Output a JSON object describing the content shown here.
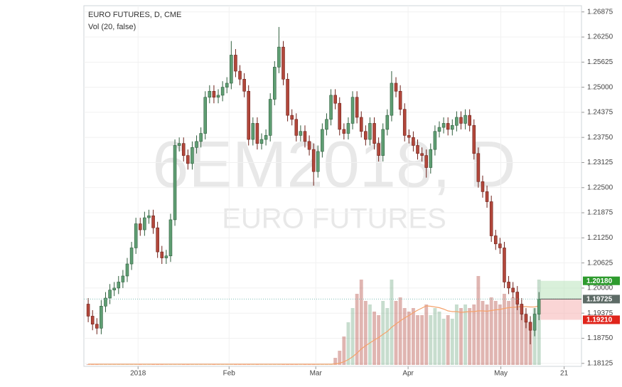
{
  "chart_data": {
    "type": "candlestick",
    "title": "EURO FUTURES, D, CME",
    "subtitle": "Vol (20, false)",
    "watermark": "6EM2018, D",
    "watermark_subtitle": "EURO FUTURES",
    "up_color": "#5f9e73",
    "down_color": "#b2473b",
    "grid": true,
    "xlim": [
      -1,
      113.8
    ],
    "xticks": [
      {
        "value": 11.5,
        "label": "2018"
      },
      {
        "value": 32.5,
        "label": "Feb"
      },
      {
        "value": 52.5,
        "label": "Mar"
      },
      {
        "value": 73.8,
        "label": "Apr"
      },
      {
        "value": 95.2,
        "label": "May"
      },
      {
        "value": 109.8,
        "label": "21"
      }
    ],
    "ylim": [
      1.1805,
      1.2703
    ],
    "yticks": [
      1.26875,
      {
        "value": 1.2625,
        "label": "1.26250"
      },
      1.25625,
      {
        "value": 1.25,
        "label": "1.25000"
      },
      1.24375,
      {
        "value": 1.2375,
        "label": "1.23750"
      },
      1.23125,
      {
        "value": 1.225,
        "label": "1.22500"
      },
      1.21875,
      {
        "value": 1.2125,
        "label": "1.21250"
      },
      1.20625,
      {
        "value": 1.2,
        "label": "1.20000"
      },
      1.19375,
      {
        "value": 1.1875,
        "label": "1.18750"
      },
      1.18125
    ],
    "open": [
      1.196,
      1.193,
      1.191,
      1.19,
      1.1955,
      1.1975,
      1.1995,
      1.2,
      1.2015,
      1.203,
      1.206,
      1.21,
      1.216,
      1.2145,
      1.2175,
      1.218,
      1.215,
      1.209,
      1.2075,
      1.208,
      1.217,
      1.2355,
      1.236,
      1.233,
      1.231,
      1.235,
      1.2365,
      1.2385,
      1.2475,
      1.249,
      1.2475,
      1.248,
      1.25,
      1.251,
      1.258,
      1.254,
      1.252,
      1.249,
      1.237,
      1.241,
      1.236,
      1.237,
      1.238,
      1.247,
      1.255,
      1.26,
      1.252,
      1.243,
      1.242,
      1.238,
      1.239,
      1.2365,
      1.2345,
      1.229,
      1.234,
      1.2395,
      1.242,
      1.248,
      1.246,
      1.2395,
      1.2385,
      1.241,
      1.2475,
      1.2425,
      1.239,
      1.237,
      1.241,
      1.236,
      1.233,
      1.2395,
      1.243,
      1.251,
      1.249,
      1.2445,
      1.238,
      1.2375,
      1.2355,
      1.2335,
      1.233,
      1.23,
      1.2345,
      1.239,
      1.24,
      1.241,
      1.2395,
      1.2405,
      1.2425,
      1.241,
      1.243,
      1.2405,
      1.2335,
      1.2265,
      1.224,
      1.2215,
      1.213,
      1.211,
      1.21,
      1.2015,
      1.2,
      1.199,
      1.196,
      1.1935,
      1.1915,
      1.1895,
      1.1935
    ],
    "high": [
      1.1975,
      1.1945,
      1.1925,
      1.197,
      1.199,
      1.201,
      1.2015,
      1.203,
      1.2045,
      1.2075,
      1.2115,
      1.2175,
      1.2175,
      1.219,
      1.2195,
      1.2195,
      1.2165,
      1.2105,
      1.2095,
      1.2185,
      1.237,
      1.2375,
      1.2375,
      1.2345,
      1.2365,
      1.238,
      1.24,
      1.249,
      1.2505,
      1.2505,
      1.2495,
      1.2515,
      1.2525,
      1.2615,
      1.2595,
      1.2555,
      1.2535,
      1.2505,
      1.2425,
      1.2425,
      1.2385,
      1.2395,
      1.2485,
      1.2565,
      1.265,
      1.2615,
      1.2535,
      1.2445,
      1.2435,
      1.2405,
      1.2405,
      1.238,
      1.236,
      1.2355,
      1.241,
      1.2435,
      1.2495,
      1.2495,
      1.2475,
      1.241,
      1.2425,
      1.249,
      1.249,
      1.244,
      1.2405,
      1.2425,
      1.2425,
      1.2375,
      1.241,
      1.2445,
      1.254,
      1.2525,
      1.2505,
      1.246,
      1.2395,
      1.239,
      1.237,
      1.235,
      1.2345,
      1.236,
      1.2405,
      1.2415,
      1.2425,
      1.2425,
      1.242,
      1.244,
      1.244,
      1.2445,
      1.2445,
      1.242,
      1.235,
      1.228,
      1.2255,
      1.223,
      1.2145,
      1.2125,
      1.2115,
      1.203,
      1.2015,
      1.2005,
      1.1975,
      1.195,
      1.193,
      1.195,
      1.199
    ],
    "low": [
      1.1915,
      1.1895,
      1.1885,
      1.1885,
      1.194,
      1.196,
      1.198,
      1.1985,
      1.2,
      1.2015,
      1.2045,
      1.2085,
      1.213,
      1.213,
      1.216,
      1.2135,
      1.2075,
      1.206,
      1.206,
      1.2065,
      1.2155,
      1.234,
      1.2315,
      1.2295,
      1.2295,
      1.2335,
      1.235,
      1.237,
      1.246,
      1.246,
      1.246,
      1.2465,
      1.2485,
      1.2495,
      1.2525,
      1.2505,
      1.2475,
      1.2355,
      1.2355,
      1.2345,
      1.2345,
      1.2355,
      1.2365,
      1.2455,
      1.2535,
      1.2505,
      1.2415,
      1.2405,
      1.2365,
      1.2365,
      1.235,
      1.233,
      1.2255,
      1.2275,
      1.2325,
      1.238,
      1.2405,
      1.2445,
      1.238,
      1.237,
      1.237,
      1.2395,
      1.241,
      1.2375,
      1.2355,
      1.2355,
      1.2345,
      1.2315,
      1.2315,
      1.238,
      1.2415,
      1.2475,
      1.243,
      1.2365,
      1.236,
      1.234,
      1.232,
      1.2315,
      1.2275,
      1.2285,
      1.233,
      1.2375,
      1.2385,
      1.238,
      1.238,
      1.239,
      1.2395,
      1.2395,
      1.239,
      1.232,
      1.225,
      1.2225,
      1.22,
      1.2115,
      1.2095,
      1.2085,
      1.2,
      1.1985,
      1.1975,
      1.1945,
      1.192,
      1.19,
      1.186,
      1.188,
      1.192
    ],
    "close": [
      1.193,
      1.191,
      1.19,
      1.1955,
      1.1975,
      1.1995,
      1.2,
      1.2015,
      1.203,
      1.206,
      1.21,
      1.216,
      1.2145,
      1.2175,
      1.218,
      1.215,
      1.209,
      1.2075,
      1.208,
      1.217,
      1.2355,
      1.236,
      1.233,
      1.231,
      1.235,
      1.2365,
      1.2385,
      1.2475,
      1.249,
      1.2475,
      1.248,
      1.25,
      1.251,
      1.258,
      1.254,
      1.252,
      1.249,
      1.237,
      1.241,
      1.236,
      1.237,
      1.238,
      1.247,
      1.255,
      1.26,
      1.252,
      1.243,
      1.242,
      1.238,
      1.239,
      1.2365,
      1.2345,
      1.229,
      1.234,
      1.2395,
      1.242,
      1.248,
      1.246,
      1.2395,
      1.2385,
      1.241,
      1.2475,
      1.2425,
      1.239,
      1.237,
      1.241,
      1.236,
      1.233,
      1.2395,
      1.243,
      1.251,
      1.249,
      1.2445,
      1.238,
      1.2375,
      1.2355,
      1.2335,
      1.233,
      1.23,
      1.2345,
      1.239,
      1.24,
      1.241,
      1.2395,
      1.2405,
      1.2425,
      1.241,
      1.243,
      1.2405,
      1.2335,
      1.2265,
      1.224,
      1.2215,
      1.213,
      1.211,
      1.21,
      1.2015,
      1.2,
      1.199,
      1.196,
      1.1935,
      1.1915,
      1.1895,
      1.1935,
      1.19725
    ],
    "volume": {
      "vlim": [
        0,
        125
      ],
      "ma_color": "#f5a26b",
      "values": [
        1,
        1,
        1,
        1,
        1,
        1,
        1,
        1,
        1,
        1,
        1,
        1,
        1,
        1,
        1,
        1,
        1,
        1,
        1,
        1,
        1,
        1,
        1,
        1,
        1,
        1,
        1,
        1,
        1,
        1,
        1,
        1,
        1,
        1,
        1,
        1,
        1,
        1,
        1,
        1,
        1,
        1,
        1,
        1,
        1,
        1,
        1,
        1,
        1,
        1,
        1,
        1,
        1,
        1,
        1,
        1,
        1,
        10,
        20,
        40,
        60,
        80,
        100,
        120,
        90,
        85,
        75,
        70,
        90,
        80,
        120,
        90,
        95,
        80,
        75,
        80,
        70,
        70,
        85,
        70,
        80,
        75,
        65,
        70,
        65,
        85,
        80,
        85,
        80,
        85,
        125,
        90,
        85,
        95,
        90,
        85,
        100,
        90,
        95,
        90,
        85,
        70,
        60,
        80,
        120
      ],
      "ma": [
        1,
        1,
        1,
        1,
        1,
        1,
        1,
        1,
        1,
        1,
        1,
        1,
        1,
        1,
        1,
        1,
        1,
        1,
        1,
        1,
        1,
        1,
        1,
        1,
        1,
        1,
        1,
        1,
        1,
        1,
        1,
        1,
        1,
        1,
        1,
        1,
        1,
        1,
        1,
        1,
        1,
        1,
        1,
        1,
        1,
        1,
        1,
        1,
        1,
        1,
        1,
        1,
        1,
        1,
        1,
        1,
        1,
        1.5,
        2.5,
        4.5,
        7.5,
        11.5,
        16.5,
        22.5,
        27,
        31,
        35,
        38.5,
        43,
        47,
        53,
        57.5,
        62,
        66,
        69.5,
        73.5,
        77,
        80,
        83,
        82.5,
        81.5,
        80.5,
        78.5,
        76,
        75,
        75,
        74,
        74.5,
        75,
        75,
        76,
        76,
        75.5,
        76.5,
        77.5,
        78,
        79.5,
        80.5,
        81,
        81.5,
        82,
        82,
        81.5,
        81.5,
        83
      ]
    },
    "position": {
      "values": [
        1.2018,
        1.19725,
        1.1921
      ],
      "value_labels": [
        "1.20180",
        "1.19725",
        "1.19210"
      ],
      "colors": [
        "#2e9b2e",
        "#5d6b66",
        "#e0241b"
      ]
    }
  }
}
